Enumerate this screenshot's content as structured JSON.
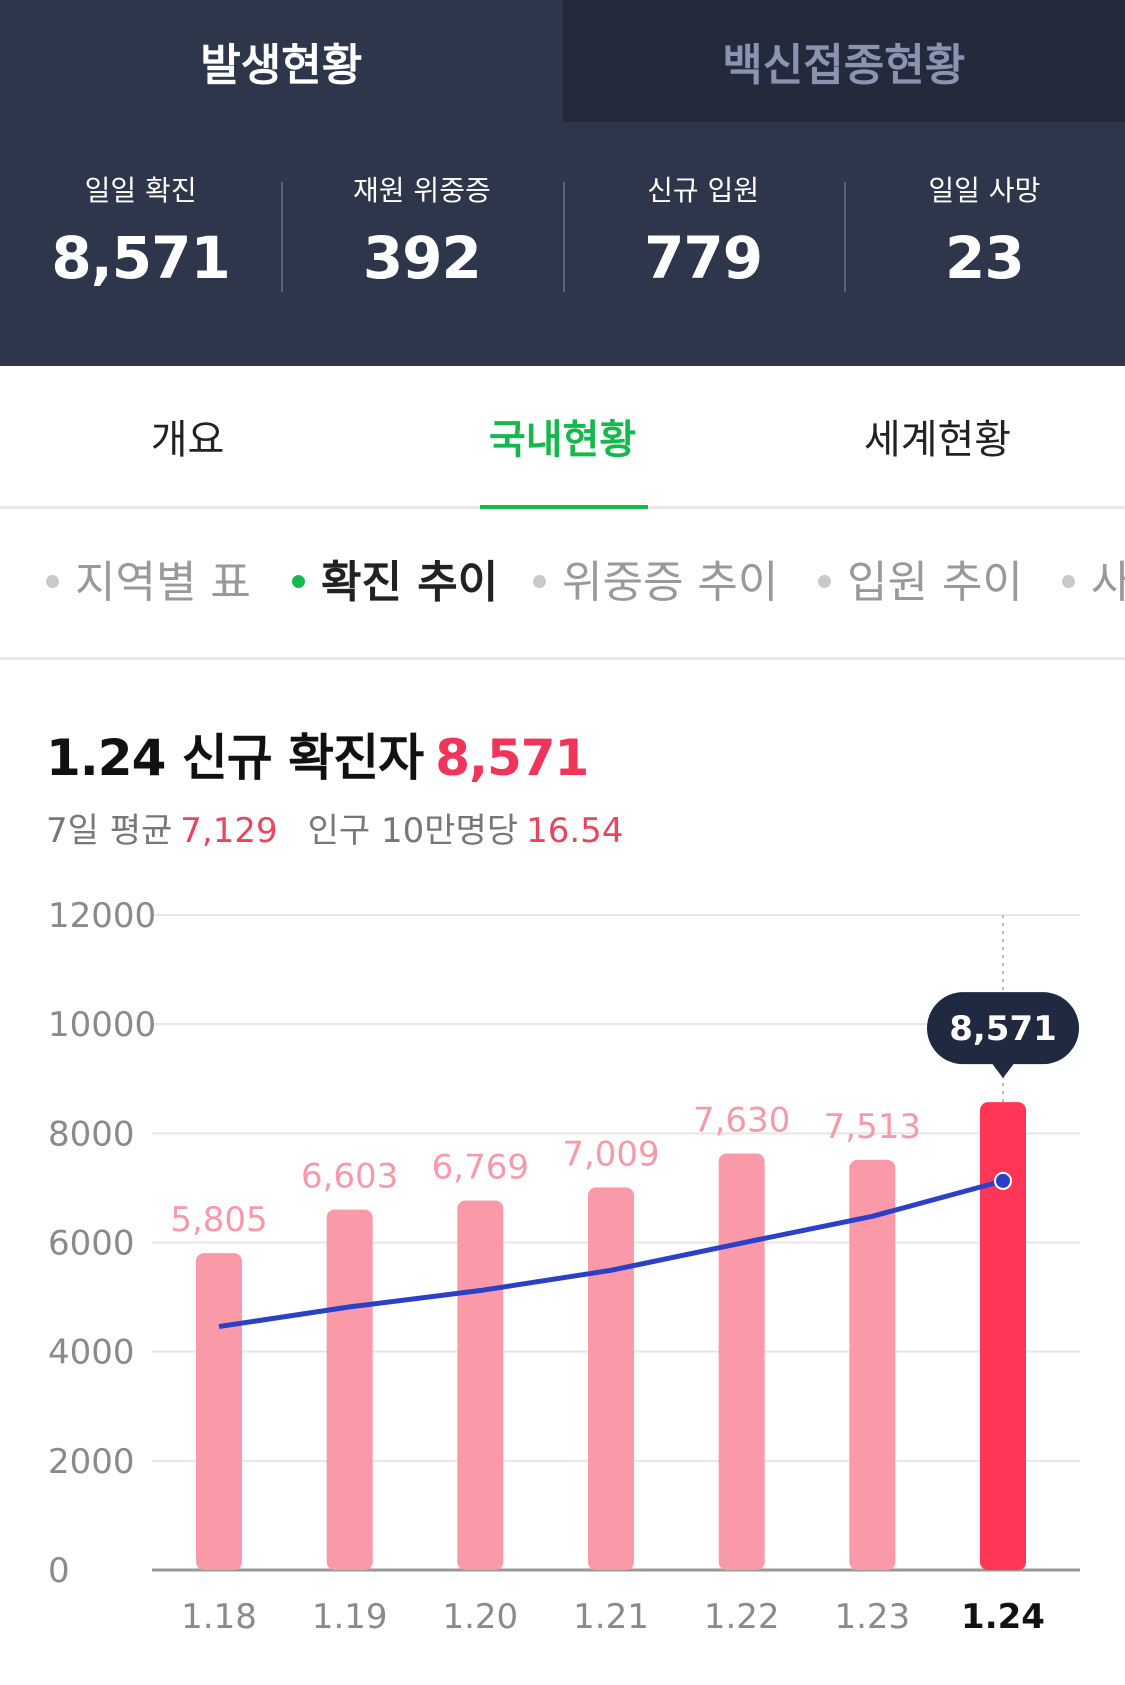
{
  "top_tabs": [
    {
      "label": "발생현황",
      "active": true
    },
    {
      "label": "백신접종현황",
      "active": false
    }
  ],
  "stats": [
    {
      "label": "일일 확진",
      "value": "8,571"
    },
    {
      "label": "재원 위중증",
      "value": "392"
    },
    {
      "label": "신규 입원",
      "value": "779"
    },
    {
      "label": "일일 사망",
      "value": "23"
    }
  ],
  "section_tabs": [
    {
      "label": "개요",
      "active": false
    },
    {
      "label": "국내현황",
      "active": true
    },
    {
      "label": "세계현황",
      "active": false
    }
  ],
  "chips": [
    {
      "label": "지역별 표",
      "active": false
    },
    {
      "label": "확진 추이",
      "active": true
    },
    {
      "label": "위중증 추이",
      "active": false
    },
    {
      "label": "입원 추이",
      "active": false
    },
    {
      "label": "사",
      "active": false
    }
  ],
  "headline": {
    "text": "1.24 신규 확진자",
    "value": "8,571"
  },
  "subline": {
    "avg_label": "7일 평균",
    "avg_value": "7,129",
    "per_label": "인구 10만명당",
    "per_value": "16.54"
  },
  "colors": {
    "accent_green": "#16b84e",
    "bar": "#fa9aa9",
    "bar_active": "#ff3655",
    "line": "#2b40c7",
    "header_bg": "#2e364b"
  },
  "chart_data": {
    "type": "bar",
    "categories": [
      "1.18",
      "1.19",
      "1.20",
      "1.21",
      "1.22",
      "1.23",
      "1.24"
    ],
    "values": [
      5805,
      6603,
      6769,
      7009,
      7630,
      7513,
      8571
    ],
    "value_labels": [
      "5,805",
      "6,603",
      "6,769",
      "7,009",
      "7,630",
      "7,513",
      "8,571"
    ],
    "yticks": [
      12000,
      10000,
      8000,
      6000,
      4000,
      2000,
      0
    ],
    "ylim": [
      0,
      12000
    ],
    "highlight_index": 6,
    "tooltip": "8,571",
    "line_series": {
      "values": [
        4460,
        4820,
        5120,
        5490,
        5990,
        6480,
        7129
      ]
    }
  }
}
